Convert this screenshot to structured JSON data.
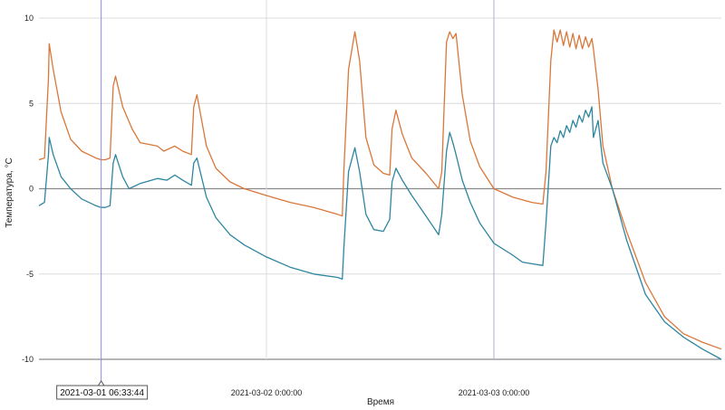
{
  "chart_data": {
    "type": "line",
    "xlabel": "Время",
    "ylabel": "Температура, °C",
    "ylim": [
      -10,
      10
    ],
    "yticks": [
      10,
      5,
      0,
      -5,
      -10
    ],
    "xlim": [
      "2021-03-01 00:00:00",
      "2021-03-03 23:59:59"
    ],
    "x_tick_labels": [
      {
        "value": "2021-03-02 00:00:00",
        "label": "2021-03-02 0:00:00"
      },
      {
        "value": "2021-03-03 00:00:00",
        "label": "2021-03-03 0:00:00"
      }
    ],
    "cursor": {
      "x": "2021-03-01 06:33:44",
      "label": "2021-03-01 06:33:44"
    },
    "grid": true,
    "series": [
      {
        "color": "#d9773a",
        "points": [
          [
            "2021-03-01 00:00:00",
            1.7
          ],
          [
            "2021-03-01 00:35:00",
            1.8
          ],
          [
            "2021-03-01 01:00:00",
            6.5
          ],
          [
            "2021-03-01 01:05:00",
            8.5
          ],
          [
            "2021-03-01 01:30:00",
            7.0
          ],
          [
            "2021-03-01 02:20:00",
            4.5
          ],
          [
            "2021-03-01 03:20:00",
            2.9
          ],
          [
            "2021-03-01 04:30:00",
            2.2
          ],
          [
            "2021-03-01 06:00:00",
            1.8
          ],
          [
            "2021-03-01 06:33:00",
            1.7
          ],
          [
            "2021-03-01 07:00:00",
            1.7
          ],
          [
            "2021-03-01 07:30:00",
            1.8
          ],
          [
            "2021-03-01 07:50:00",
            6.0
          ],
          [
            "2021-03-01 08:05:00",
            6.6
          ],
          [
            "2021-03-01 08:50:00",
            4.8
          ],
          [
            "2021-03-01 09:50:00",
            3.5
          ],
          [
            "2021-03-01 10:40:00",
            2.7
          ],
          [
            "2021-03-01 12:30:00",
            2.5
          ],
          [
            "2021-03-01 13:10:00",
            2.2
          ],
          [
            "2021-03-01 14:20:00",
            2.5
          ],
          [
            "2021-03-01 15:10:00",
            2.2
          ],
          [
            "2021-03-01 16:05:00",
            2.0
          ],
          [
            "2021-03-01 16:20:00",
            4.8
          ],
          [
            "2021-03-01 16:40:00",
            5.5
          ],
          [
            "2021-03-01 17:40:00",
            2.5
          ],
          [
            "2021-03-01 18:40:00",
            1.2
          ],
          [
            "2021-03-01 20:10:00",
            0.4
          ],
          [
            "2021-03-01 21:40:00",
            0.0
          ],
          [
            "2021-03-02 00:00:00",
            -0.4
          ],
          [
            "2021-03-02 02:30:00",
            -0.8
          ],
          [
            "2021-03-02 05:00:00",
            -1.1
          ],
          [
            "2021-03-02 07:30:00",
            -1.5
          ],
          [
            "2021-03-02 08:00:00",
            -1.6
          ],
          [
            "2021-03-02 08:10:00",
            1.0
          ],
          [
            "2021-03-02 08:40:00",
            7.0
          ],
          [
            "2021-03-02 09:20:00",
            9.2
          ],
          [
            "2021-03-02 09:50:00",
            7.5
          ],
          [
            "2021-03-02 10:30:00",
            3.0
          ],
          [
            "2021-03-02 11:20:00",
            1.4
          ],
          [
            "2021-03-02 12:20:00",
            0.9
          ],
          [
            "2021-03-02 13:00:00",
            0.8
          ],
          [
            "2021-03-02 13:15:00",
            3.5
          ],
          [
            "2021-03-02 13:40:00",
            4.6
          ],
          [
            "2021-03-02 14:20:00",
            3.2
          ],
          [
            "2021-03-02 15:20:00",
            1.8
          ],
          [
            "2021-03-02 16:50:00",
            0.9
          ],
          [
            "2021-03-02 18:10:00",
            0.0
          ],
          [
            "2021-03-02 18:30:00",
            1.0
          ],
          [
            "2021-03-02 19:00:00",
            8.6
          ],
          [
            "2021-03-02 19:20:00",
            9.2
          ],
          [
            "2021-03-02 19:40:00",
            8.8
          ],
          [
            "2021-03-02 20:00:00",
            9.1
          ],
          [
            "2021-03-02 20:40:00",
            5.5
          ],
          [
            "2021-03-02 21:30:00",
            2.8
          ],
          [
            "2021-03-02 22:30:00",
            1.3
          ],
          [
            "2021-03-03 00:00:00",
            0.0
          ],
          [
            "2021-03-03 02:00:00",
            -0.5
          ],
          [
            "2021-03-03 04:00:00",
            -0.8
          ],
          [
            "2021-03-03 05:10:00",
            -0.9
          ],
          [
            "2021-03-03 05:30:00",
            1.0
          ],
          [
            "2021-03-03 06:00:00",
            7.5
          ],
          [
            "2021-03-03 06:20:00",
            9.3
          ],
          [
            "2021-03-03 06:40:00",
            8.6
          ],
          [
            "2021-03-03 07:00:00",
            9.3
          ],
          [
            "2021-03-03 07:20:00",
            8.4
          ],
          [
            "2021-03-03 07:40:00",
            9.2
          ],
          [
            "2021-03-03 08:00:00",
            8.3
          ],
          [
            "2021-03-03 08:20:00",
            9.1
          ],
          [
            "2021-03-03 08:40:00",
            8.2
          ],
          [
            "2021-03-03 09:00:00",
            9.0
          ],
          [
            "2021-03-03 09:20:00",
            8.2
          ],
          [
            "2021-03-03 09:40:00",
            8.9
          ],
          [
            "2021-03-03 10:00:00",
            8.3
          ],
          [
            "2021-03-03 10:20:00",
            8.8
          ],
          [
            "2021-03-03 10:30:00",
            8.2
          ],
          [
            "2021-03-03 11:00:00",
            5.8
          ],
          [
            "2021-03-03 11:30:00",
            2.5
          ],
          [
            "2021-03-03 12:30:00",
            0.0
          ],
          [
            "2021-03-03 14:00:00",
            -2.5
          ],
          [
            "2021-03-03 16:00:00",
            -5.5
          ],
          [
            "2021-03-03 18:00:00",
            -7.5
          ],
          [
            "2021-03-03 20:00:00",
            -8.5
          ],
          [
            "2021-03-03 22:00:00",
            -9.0
          ],
          [
            "2021-03-03 23:59:59",
            -9.4
          ]
        ]
      },
      {
        "color": "#2e86a0",
        "points": [
          [
            "2021-03-01 00:00:00",
            -1.0
          ],
          [
            "2021-03-01 00:35:00",
            -0.8
          ],
          [
            "2021-03-01 01:00:00",
            2.0
          ],
          [
            "2021-03-01 01:05:00",
            3.0
          ],
          [
            "2021-03-01 01:30:00",
            2.0
          ],
          [
            "2021-03-01 02:20:00",
            0.7
          ],
          [
            "2021-03-01 03:20:00",
            0.0
          ],
          [
            "2021-03-01 04:30:00",
            -0.6
          ],
          [
            "2021-03-01 06:00:00",
            -1.0
          ],
          [
            "2021-03-01 06:33:00",
            -1.1
          ],
          [
            "2021-03-01 07:00:00",
            -1.1
          ],
          [
            "2021-03-01 07:30:00",
            -1.0
          ],
          [
            "2021-03-01 07:50:00",
            1.5
          ],
          [
            "2021-03-01 08:05:00",
            2.0
          ],
          [
            "2021-03-01 08:50:00",
            0.7
          ],
          [
            "2021-03-01 09:30:00",
            0.0
          ],
          [
            "2021-03-01 10:40:00",
            0.3
          ],
          [
            "2021-03-01 12:30:00",
            0.6
          ],
          [
            "2021-03-01 13:30:00",
            0.5
          ],
          [
            "2021-03-01 14:20:00",
            0.8
          ],
          [
            "2021-03-01 15:10:00",
            0.5
          ],
          [
            "2021-03-01 16:05:00",
            0.2
          ],
          [
            "2021-03-01 16:20:00",
            1.5
          ],
          [
            "2021-03-01 16:40:00",
            1.8
          ],
          [
            "2021-03-01 17:40:00",
            -0.5
          ],
          [
            "2021-03-01 18:40:00",
            -1.7
          ],
          [
            "2021-03-01 20:10:00",
            -2.7
          ],
          [
            "2021-03-01 21:40:00",
            -3.3
          ],
          [
            "2021-03-02 00:00:00",
            -4.0
          ],
          [
            "2021-03-02 02:30:00",
            -4.6
          ],
          [
            "2021-03-02 05:00:00",
            -5.0
          ],
          [
            "2021-03-02 07:30:00",
            -5.2
          ],
          [
            "2021-03-02 08:00:00",
            -5.3
          ],
          [
            "2021-03-02 08:10:00",
            -3.5
          ],
          [
            "2021-03-02 08:40:00",
            1.0
          ],
          [
            "2021-03-02 09:20:00",
            2.4
          ],
          [
            "2021-03-02 09:50:00",
            1.0
          ],
          [
            "2021-03-02 10:30:00",
            -1.5
          ],
          [
            "2021-03-02 11:20:00",
            -2.4
          ],
          [
            "2021-03-02 12:20:00",
            -2.5
          ],
          [
            "2021-03-02 13:00:00",
            -1.8
          ],
          [
            "2021-03-02 13:15:00",
            0.4
          ],
          [
            "2021-03-02 13:40:00",
            1.2
          ],
          [
            "2021-03-02 14:20:00",
            0.5
          ],
          [
            "2021-03-02 15:20:00",
            -0.4
          ],
          [
            "2021-03-02 16:50:00",
            -1.6
          ],
          [
            "2021-03-02 18:10:00",
            -2.7
          ],
          [
            "2021-03-02 18:30:00",
            -1.5
          ],
          [
            "2021-03-02 19:00:00",
            2.2
          ],
          [
            "2021-03-02 19:20:00",
            3.3
          ],
          [
            "2021-03-02 19:40:00",
            2.7
          ],
          [
            "2021-03-02 20:00:00",
            2.0
          ],
          [
            "2021-03-02 20:40:00",
            0.5
          ],
          [
            "2021-03-02 21:30:00",
            -0.8
          ],
          [
            "2021-03-02 22:30:00",
            -2.0
          ],
          [
            "2021-03-03 00:00:00",
            -3.2
          ],
          [
            "2021-03-03 02:00:00",
            -3.9
          ],
          [
            "2021-03-03 03:00:00",
            -4.3
          ],
          [
            "2021-03-03 04:00:00",
            -4.4
          ],
          [
            "2021-03-03 05:10:00",
            -4.5
          ],
          [
            "2021-03-03 05:30:00",
            -2.0
          ],
          [
            "2021-03-03 06:00:00",
            2.5
          ],
          [
            "2021-03-03 06:20:00",
            3.0
          ],
          [
            "2021-03-03 06:40:00",
            2.7
          ],
          [
            "2021-03-03 07:00:00",
            3.4
          ],
          [
            "2021-03-03 07:20:00",
            3.0
          ],
          [
            "2021-03-03 07:40:00",
            3.7
          ],
          [
            "2021-03-03 08:00:00",
            3.3
          ],
          [
            "2021-03-03 08:20:00",
            4.0
          ],
          [
            "2021-03-03 08:40:00",
            3.6
          ],
          [
            "2021-03-03 09:00:00",
            4.3
          ],
          [
            "2021-03-03 09:20:00",
            3.9
          ],
          [
            "2021-03-03 09:40:00",
            4.6
          ],
          [
            "2021-03-03 10:00:00",
            4.2
          ],
          [
            "2021-03-03 10:20:00",
            4.8
          ],
          [
            "2021-03-03 10:30:00",
            3.0
          ],
          [
            "2021-03-03 11:00:00",
            4.0
          ],
          [
            "2021-03-03 11:30:00",
            1.5
          ],
          [
            "2021-03-03 12:30:00",
            0.0
          ],
          [
            "2021-03-03 14:00:00",
            -3.0
          ],
          [
            "2021-03-03 16:00:00",
            -6.2
          ],
          [
            "2021-03-03 18:00:00",
            -7.8
          ],
          [
            "2021-03-03 20:00:00",
            -8.7
          ],
          [
            "2021-03-03 22:00:00",
            -9.4
          ],
          [
            "2021-03-03 23:59:59",
            -10.0
          ]
        ]
      }
    ]
  }
}
